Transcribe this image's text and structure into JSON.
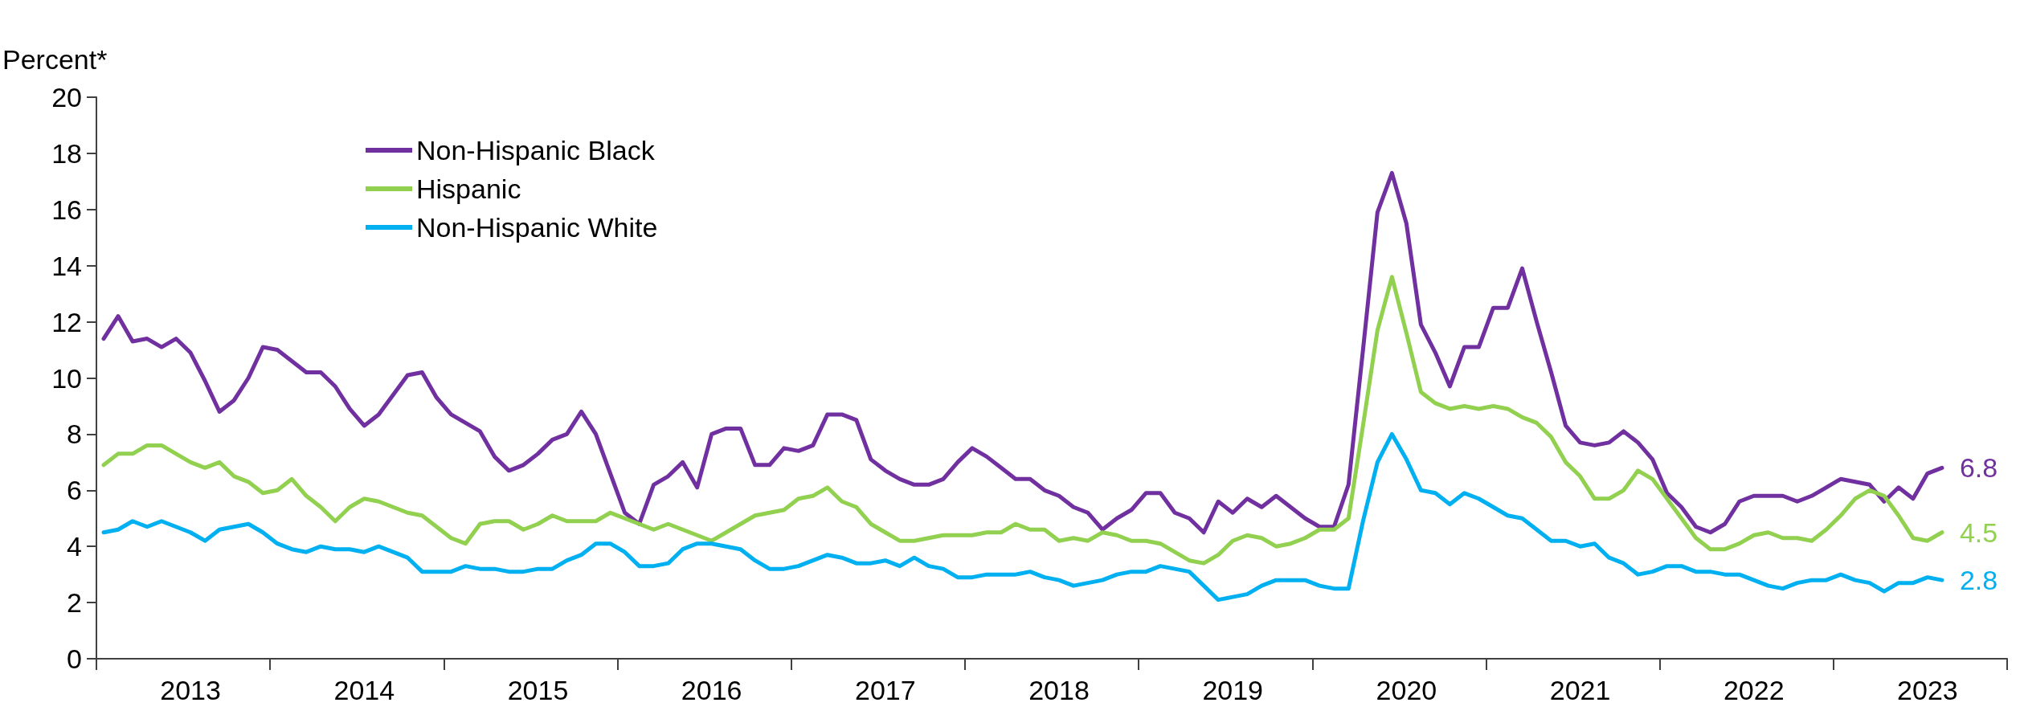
{
  "chart_data": {
    "type": "line",
    "ylabel": "Percent*",
    "categories": [
      null,
      null,
      null,
      null,
      null,
      null,
      "2013",
      null,
      null,
      null,
      null,
      null,
      null,
      null,
      null,
      null,
      null,
      null,
      "2014",
      null,
      null,
      null,
      null,
      null,
      null,
      null,
      null,
      null,
      null,
      null,
      "2015",
      null,
      null,
      null,
      null,
      null,
      null,
      null,
      null,
      null,
      null,
      null,
      "2016",
      null,
      null,
      null,
      null,
      null,
      null,
      null,
      null,
      null,
      null,
      null,
      "2017",
      null,
      null,
      null,
      null,
      null,
      null,
      null,
      null,
      null,
      null,
      null,
      "2018",
      null,
      null,
      null,
      null,
      null,
      null,
      null,
      null,
      null,
      null,
      null,
      "2019",
      null,
      null,
      null,
      null,
      null,
      null,
      null,
      null,
      null,
      null,
      null,
      "2020",
      null,
      null,
      null,
      null,
      null,
      null,
      null,
      null,
      null,
      null,
      null,
      "2021",
      null,
      null,
      null,
      null,
      null,
      null,
      null,
      null,
      null,
      null,
      null,
      "2022",
      null,
      null,
      null,
      null,
      null,
      null,
      null,
      null,
      null,
      null,
      null,
      "2023",
      null,
      null,
      null,
      null,
      null
    ],
    "series": [
      {
        "name": "Non-Hispanic Black",
        "color": "#7030a0",
        "values": [
          11.4,
          12.2,
          11.3,
          11.4,
          11.1,
          11.4,
          10.9,
          9.9,
          8.8,
          9.2,
          10.0,
          11.1,
          11.0,
          10.6,
          10.2,
          10.2,
          9.7,
          8.9,
          8.3,
          8.7,
          9.4,
          10.1,
          10.2,
          9.3,
          8.7,
          8.4,
          8.1,
          7.2,
          6.7,
          6.9,
          7.3,
          7.8,
          8.0,
          8.8,
          8.0,
          6.6,
          5.2,
          4.8,
          6.2,
          6.5,
          7.0,
          6.1,
          8.0,
          8.2,
          8.2,
          6.9,
          6.9,
          7.5,
          7.4,
          7.6,
          8.7,
          8.7,
          8.5,
          7.1,
          6.7,
          6.4,
          6.2,
          6.2,
          6.4,
          7.0,
          7.5,
          7.2,
          6.8,
          6.4,
          6.4,
          6.0,
          5.8,
          5.4,
          5.2,
          4.6,
          5.0,
          5.3,
          5.9,
          5.9,
          5.2,
          5.0,
          4.5,
          5.6,
          5.2,
          5.7,
          5.4,
          5.8,
          5.4,
          5.0,
          4.7,
          4.7,
          6.2,
          11.0,
          15.9,
          17.3,
          15.5,
          11.9,
          10.9,
          9.7,
          11.1,
          11.1,
          12.5,
          12.5,
          13.9,
          12.0,
          10.2,
          8.3,
          7.7,
          7.6,
          7.7,
          8.1,
          7.7,
          7.1,
          5.9,
          5.4,
          4.7,
          4.5,
          4.8,
          5.6,
          5.8,
          5.8,
          5.8,
          5.6,
          5.8,
          6.1,
          6.4,
          6.3,
          6.2,
          5.6,
          6.1,
          5.7,
          6.6,
          6.8,
          null,
          null,
          null,
          null
        ],
        "value_labels": [
          null,
          null,
          null,
          null,
          null,
          null,
          null,
          null,
          null,
          null,
          null,
          null,
          null,
          null,
          null,
          null,
          null,
          null,
          null,
          null,
          null,
          null,
          null,
          null,
          null,
          null,
          null,
          null,
          null,
          null,
          null,
          null,
          null,
          null,
          null,
          null,
          null,
          null,
          null,
          null,
          null,
          null,
          null,
          null,
          null,
          null,
          null,
          null,
          null,
          null,
          null,
          null,
          null,
          null,
          null,
          null,
          null,
          null,
          null,
          null,
          null,
          null,
          null,
          null,
          null,
          null,
          null,
          null,
          null,
          null,
          null,
          null,
          null,
          null,
          null,
          null,
          null,
          null,
          null,
          null,
          null,
          null,
          null,
          null,
          null,
          null,
          null,
          null,
          null,
          null,
          null,
          null,
          null,
          null,
          null,
          null,
          null,
          null,
          null,
          null,
          null,
          null,
          null,
          null,
          null,
          null,
          null,
          null,
          null,
          null,
          null,
          null,
          null,
          null,
          null,
          null,
          null,
          null,
          null,
          null,
          null,
          null,
          null,
          null,
          null,
          null,
          null,
          "6.8",
          null,
          null,
          null,
          null
        ]
      },
      {
        "name": "Hispanic",
        "color": "#92d050",
        "values": [
          6.9,
          7.3,
          7.3,
          7.6,
          7.6,
          7.3,
          7.0,
          6.8,
          7.0,
          6.5,
          6.3,
          5.9,
          6.0,
          6.4,
          5.8,
          5.4,
          4.9,
          5.4,
          5.7,
          5.6,
          5.4,
          5.2,
          5.1,
          4.7,
          4.3,
          4.1,
          4.8,
          4.9,
          4.9,
          4.6,
          4.8,
          5.1,
          4.9,
          4.9,
          4.9,
          5.2,
          5.0,
          4.8,
          4.6,
          4.8,
          4.6,
          4.4,
          4.2,
          4.5,
          4.8,
          5.1,
          5.2,
          5.3,
          5.7,
          5.8,
          6.1,
          5.6,
          5.4,
          4.8,
          4.5,
          4.2,
          4.2,
          4.3,
          4.4,
          4.4,
          4.4,
          4.5,
          4.5,
          4.8,
          4.6,
          4.6,
          4.2,
          4.3,
          4.2,
          4.5,
          4.4,
          4.2,
          4.2,
          4.1,
          3.8,
          3.5,
          3.4,
          3.7,
          4.2,
          4.4,
          4.3,
          4.0,
          4.1,
          4.3,
          4.6,
          4.6,
          5.0,
          8.3,
          11.7,
          13.6,
          11.6,
          9.5,
          9.1,
          8.9,
          9.0,
          8.9,
          9.0,
          8.9,
          8.6,
          8.4,
          7.9,
          7.0,
          6.5,
          5.7,
          5.7,
          6.0,
          6.7,
          6.4,
          5.7,
          5.0,
          4.3,
          3.9,
          3.9,
          4.1,
          4.4,
          4.5,
          4.3,
          4.3,
          4.2,
          4.6,
          5.1,
          5.7,
          6.0,
          5.8,
          5.1,
          4.3,
          4.2,
          4.5,
          null,
          null,
          null,
          null
        ],
        "value_labels": [
          null,
          null,
          null,
          null,
          null,
          null,
          null,
          null,
          null,
          null,
          null,
          null,
          null,
          null,
          null,
          null,
          null,
          null,
          null,
          null,
          null,
          null,
          null,
          null,
          null,
          null,
          null,
          null,
          null,
          null,
          null,
          null,
          null,
          null,
          null,
          null,
          null,
          null,
          null,
          null,
          null,
          null,
          null,
          null,
          null,
          null,
          null,
          null,
          null,
          null,
          null,
          null,
          null,
          null,
          null,
          null,
          null,
          null,
          null,
          null,
          null,
          null,
          null,
          null,
          null,
          null,
          null,
          null,
          null,
          null,
          null,
          null,
          null,
          null,
          null,
          null,
          null,
          null,
          null,
          null,
          null,
          null,
          null,
          null,
          null,
          null,
          null,
          null,
          null,
          null,
          null,
          null,
          null,
          null,
          null,
          null,
          null,
          null,
          null,
          null,
          null,
          null,
          null,
          null,
          null,
          null,
          null,
          null,
          null,
          null,
          null,
          null,
          null,
          null,
          null,
          null,
          null,
          null,
          null,
          null,
          null,
          null,
          null,
          null,
          null,
          null,
          null,
          "4.5",
          null,
          null,
          null,
          null
        ]
      },
      {
        "name": "Non-Hispanic White",
        "color": "#00b0f0",
        "values": [
          4.5,
          4.6,
          4.9,
          4.7,
          4.9,
          4.7,
          4.5,
          4.2,
          4.6,
          4.7,
          4.8,
          4.5,
          4.1,
          3.9,
          3.8,
          4.0,
          3.9,
          3.9,
          3.8,
          4.0,
          3.8,
          3.6,
          3.1,
          3.1,
          3.1,
          3.3,
          3.2,
          3.2,
          3.1,
          3.1,
          3.2,
          3.2,
          3.5,
          3.7,
          4.1,
          4.1,
          3.8,
          3.3,
          3.3,
          3.4,
          3.9,
          4.1,
          4.1,
          4.0,
          3.9,
          3.5,
          3.2,
          3.2,
          3.3,
          3.5,
          3.7,
          3.6,
          3.4,
          3.4,
          3.5,
          3.3,
          3.6,
          3.3,
          3.2,
          2.9,
          2.9,
          3.0,
          3.0,
          3.0,
          3.1,
          2.9,
          2.8,
          2.6,
          2.7,
          2.8,
          3.0,
          3.1,
          3.1,
          3.3,
          3.2,
          3.1,
          2.6,
          2.1,
          2.2,
          2.3,
          2.6,
          2.8,
          2.8,
          2.8,
          2.6,
          2.5,
          2.5,
          4.9,
          7.0,
          8.0,
          7.1,
          6.0,
          5.9,
          5.5,
          5.9,
          5.7,
          5.4,
          5.1,
          5.0,
          4.6,
          4.2,
          4.2,
          4.0,
          4.1,
          3.6,
          3.4,
          3.0,
          3.1,
          3.3,
          3.3,
          3.1,
          3.1,
          3.0,
          3.0,
          2.8,
          2.6,
          2.5,
          2.7,
          2.8,
          2.8,
          3.0,
          2.8,
          2.7,
          2.4,
          2.7,
          2.7,
          2.9,
          2.8,
          null,
          null,
          null,
          null
        ],
        "value_labels": [
          null,
          null,
          null,
          null,
          null,
          null,
          null,
          null,
          null,
          null,
          null,
          null,
          null,
          null,
          null,
          null,
          null,
          null,
          null,
          null,
          null,
          null,
          null,
          null,
          null,
          null,
          null,
          null,
          null,
          null,
          null,
          null,
          null,
          null,
          null,
          null,
          null,
          null,
          null,
          null,
          null,
          null,
          null,
          null,
          null,
          null,
          null,
          null,
          null,
          null,
          null,
          null,
          null,
          null,
          null,
          null,
          null,
          null,
          null,
          null,
          null,
          null,
          null,
          null,
          null,
          null,
          null,
          null,
          null,
          null,
          null,
          null,
          null,
          null,
          null,
          null,
          null,
          null,
          null,
          null,
          null,
          null,
          null,
          null,
          null,
          null,
          null,
          null,
          null,
          null,
          null,
          null,
          null,
          null,
          null,
          null,
          null,
          null,
          null,
          null,
          null,
          null,
          null,
          null,
          null,
          null,
          null,
          null,
          null,
          null,
          null,
          null,
          null,
          null,
          null,
          null,
          null,
          null,
          null,
          null,
          null,
          null,
          null,
          null,
          null,
          null,
          null,
          "2.8",
          null,
          null,
          null,
          null
        ]
      }
    ],
    "ylim": [
      0,
      20
    ],
    "yticks": [
      0,
      2,
      4,
      6,
      8,
      10,
      12,
      14,
      16,
      18,
      20
    ],
    "grid": false,
    "legend": "top left",
    "marker": "none",
    "line_style": "solid"
  }
}
